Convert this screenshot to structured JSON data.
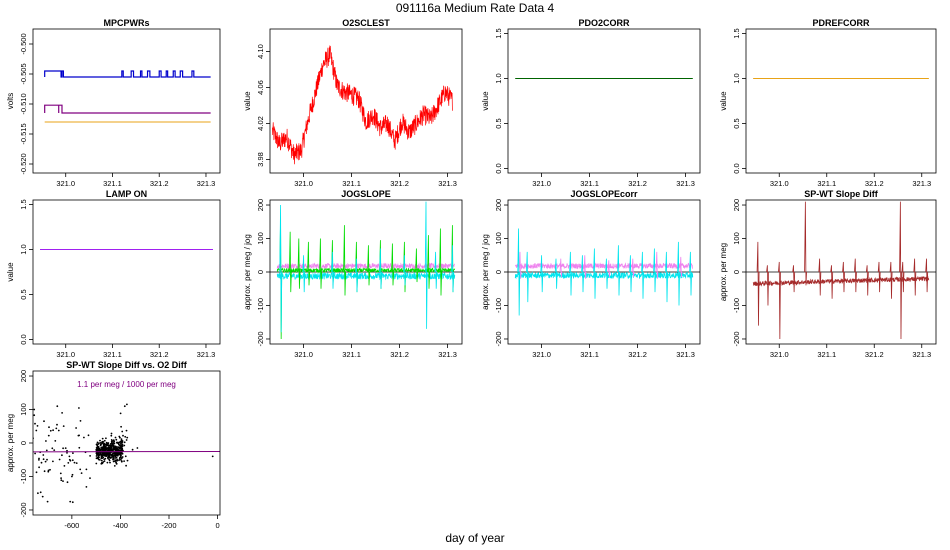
{
  "page": {
    "title": "091116a   Medium Rate Data 4",
    "x_label": "day of year"
  },
  "chart_data": [
    {
      "type": "line",
      "title": "MPCPWRs",
      "ylabel": "volts",
      "xlim": [
        320.93,
        321.33
      ],
      "ylim": [
        -0.5215,
        -0.4975
      ],
      "xticks": [
        321.0,
        321.1,
        321.2,
        321.3
      ],
      "xtick_labels": [
        "321.0",
        "321.1",
        "321.2",
        "321.3"
      ],
      "yticks": [
        -0.5,
        -0.505,
        -0.51,
        -0.515,
        -0.52
      ],
      "ytick_labels": [
        "-0.500",
        "-0.505",
        "-0.510",
        "-0.515",
        "-0.520"
      ],
      "series": [
        {
          "name": "blue",
          "color": "#0000cc",
          "kind": "step",
          "base": -0.5055,
          "high": -0.5045,
          "pulses": [
            [
              320.955,
              320.99
            ],
            [
              320.992,
              320.995
            ],
            [
              321.12,
              321.123
            ],
            [
              321.14,
              321.145
            ],
            [
              321.16,
              321.163
            ],
            [
              321.175,
              321.18
            ],
            [
              321.2,
              321.204
            ],
            [
              321.215,
              321.218
            ],
            [
              321.23,
              321.234
            ],
            [
              321.245,
              321.25
            ],
            [
              321.27,
              321.274
            ]
          ],
          "x0": 320.955,
          "x1": 321.31
        },
        {
          "name": "purple",
          "color": "#800080",
          "kind": "step",
          "base": -0.5115,
          "high": -0.5102,
          "pulses": [
            [
              320.955,
              320.985
            ],
            [
              320.985,
              320.992
            ]
          ],
          "x0": 320.955,
          "x1": 321.31
        },
        {
          "name": "orange",
          "color": "#e8a317",
          "kind": "flat",
          "value": -0.513,
          "x0": 320.955,
          "x1": 321.31
        }
      ]
    },
    {
      "type": "line",
      "title": "O2SCLEST",
      "ylabel": "value",
      "xlim": [
        320.93,
        321.33
      ],
      "ylim": [
        3.965,
        4.125
      ],
      "xticks": [
        321.0,
        321.1,
        321.2,
        321.3
      ],
      "xtick_labels": [
        "321.0",
        "321.1",
        "321.2",
        "321.3"
      ],
      "yticks": [
        3.98,
        4.02,
        4.06,
        4.1
      ],
      "ytick_labels": [
        "3.98",
        "4.02",
        "4.06",
        "4.10"
      ],
      "series": [
        {
          "name": "O2SCLEST",
          "color": "#ff0000",
          "kind": "noisy",
          "amp": 0.011,
          "x": [
            320.935,
            320.95,
            320.965,
            320.98,
            320.995,
            321.01,
            321.025,
            321.04,
            321.055,
            321.07,
            321.085,
            321.1,
            321.115,
            321.13,
            321.145,
            321.16,
            321.175,
            321.19,
            321.205,
            321.22,
            321.235,
            321.25,
            321.265,
            321.28,
            321.295,
            321.31
          ],
          "y": [
            4.012,
            3.997,
            4.005,
            3.985,
            3.99,
            4.025,
            4.055,
            4.085,
            4.097,
            4.062,
            4.055,
            4.052,
            4.047,
            4.022,
            4.03,
            4.015,
            4.02,
            4.0,
            4.022,
            4.01,
            4.02,
            4.03,
            4.025,
            4.04,
            4.055,
            4.045
          ]
        }
      ]
    },
    {
      "type": "line",
      "title": "PDO2CORR",
      "ylabel": "value",
      "xlim": [
        320.93,
        321.33
      ],
      "ylim": [
        -0.05,
        1.55
      ],
      "xticks": [
        321.0,
        321.1,
        321.2,
        321.3
      ],
      "xtick_labels": [
        "321.0",
        "321.1",
        "321.2",
        "321.3"
      ],
      "yticks": [
        0.0,
        0.5,
        1.0,
        1.5
      ],
      "ytick_labels": [
        "0.0",
        "0.5",
        "1.0",
        "1.5"
      ],
      "series": [
        {
          "name": "PDO2CORR",
          "color": "#006400",
          "kind": "flat",
          "value": 1.0,
          "x0": 320.945,
          "x1": 321.315
        }
      ]
    },
    {
      "type": "line",
      "title": "PDREFCORR",
      "ylabel": "value",
      "xlim": [
        320.93,
        321.33
      ],
      "ylim": [
        -0.05,
        1.55
      ],
      "xticks": [
        321.0,
        321.1,
        321.2,
        321.3
      ],
      "xtick_labels": [
        "321.0",
        "321.1",
        "321.2",
        "321.3"
      ],
      "yticks": [
        0.0,
        0.5,
        1.0,
        1.5
      ],
      "ytick_labels": [
        "0.0",
        "0.5",
        "1.0",
        "1.5"
      ],
      "series": [
        {
          "name": "PDREFCORR",
          "color": "#e8a317",
          "kind": "flat",
          "value": 1.0,
          "x0": 320.945,
          "x1": 321.315
        }
      ]
    },
    {
      "type": "line",
      "title": "LAMP ON",
      "ylabel": "value",
      "xlim": [
        320.93,
        321.33
      ],
      "ylim": [
        -0.05,
        1.55
      ],
      "xticks": [
        321.0,
        321.1,
        321.2,
        321.3
      ],
      "xtick_labels": [
        "321.0",
        "321.1",
        "321.2",
        "321.3"
      ],
      "yticks": [
        0.0,
        0.5,
        1.0,
        1.5
      ],
      "ytick_labels": [
        "0.0",
        "0.5",
        "1.0",
        "1.5"
      ],
      "series": [
        {
          "name": "LAMP ON",
          "color": "#a020f0",
          "kind": "flat",
          "value": 1.0,
          "x0": 320.945,
          "x1": 321.315
        }
      ]
    },
    {
      "type": "line",
      "title": "JOGSLOPE",
      "ylabel": "approx. per meg / jog",
      "xlim": [
        320.93,
        321.33
      ],
      "ylim": [
        -215,
        215
      ],
      "xticks": [
        321.0,
        321.1,
        321.2,
        321.3
      ],
      "xtick_labels": [
        "321.0",
        "321.1",
        "321.2",
        "321.3"
      ],
      "yticks": [
        -200,
        -100,
        0,
        100,
        200
      ],
      "ytick_labels": [
        "-200",
        "-100",
        "0",
        "100",
        "200"
      ],
      "zero_line": true,
      "series": [
        {
          "name": "violet",
          "color": "#ee82ee",
          "kind": "noisy",
          "amp": 8,
          "x": [
            320.945,
            321.315
          ],
          "y": [
            18,
            18
          ]
        },
        {
          "name": "cyan",
          "color": "#00e5ee",
          "kind": "noisy",
          "amp": 10,
          "x": [
            320.945,
            321.315
          ],
          "y": [
            -12,
            -12
          ]
        },
        {
          "name": "green",
          "color": "#00dd00",
          "kind": "noisy",
          "amp": 6,
          "x": [
            320.945,
            321.315
          ],
          "y": [
            5,
            5
          ]
        }
      ],
      "spikes": [
        {
          "color": "#00dd00",
          "x": [
            320.952,
            320.972,
            320.99,
            321.01,
            321.035,
            321.06,
            321.085,
            321.11,
            321.135,
            321.16,
            321.185,
            321.21,
            321.235,
            321.26,
            321.285,
            321.31
          ],
          "up": [
            160,
            120,
            100,
            90,
            100,
            95,
            140,
            90,
            80,
            95,
            85,
            90,
            70,
            110,
            130,
            140
          ],
          "down": [
            -200,
            -60,
            -50,
            -40,
            -50,
            -40,
            -70,
            -60,
            -40,
            -50,
            -40,
            -60,
            -30,
            -50,
            -70,
            -60
          ]
        },
        {
          "color": "#00e5ee",
          "x": [
            320.952,
            321.0,
            321.06,
            321.11,
            321.16,
            321.21,
            321.255,
            321.275,
            321.31
          ],
          "up": [
            200,
            50,
            60,
            40,
            70,
            50,
            210,
            60,
            80
          ],
          "down": [
            -180,
            -60,
            -50,
            -60,
            -50,
            -40,
            -170,
            -50,
            -60
          ]
        }
      ]
    },
    {
      "type": "line",
      "title": "JOGSLOPEcorr",
      "ylabel": "approx. per meg / jog",
      "xlim": [
        320.93,
        321.33
      ],
      "ylim": [
        -215,
        215
      ],
      "xticks": [
        321.0,
        321.1,
        321.2,
        321.3
      ],
      "xtick_labels": [
        "321.0",
        "321.1",
        "321.2",
        "321.3"
      ],
      "yticks": [
        -200,
        -100,
        0,
        100,
        200
      ],
      "ytick_labels": [
        "-200",
        "-100",
        "0",
        "100",
        "200"
      ],
      "zero_line": true,
      "series": [
        {
          "name": "violet",
          "color": "#ee82ee",
          "kind": "noisy",
          "amp": 8,
          "x": [
            320.945,
            321.315
          ],
          "y": [
            18,
            18
          ]
        },
        {
          "name": "cyan",
          "color": "#00e5ee",
          "kind": "noisy",
          "amp": 9,
          "x": [
            320.945,
            321.315
          ],
          "y": [
            -10,
            -10
          ]
        }
      ],
      "spikes": [
        {
          "color": "#ee82ee",
          "x": [
            320.955,
            321.04,
            321.09,
            321.14,
            321.19,
            321.24,
            321.29
          ],
          "up": [
            60,
            40,
            50,
            35,
            40,
            60,
            45
          ],
          "down": [
            -20,
            -15,
            -20,
            -15,
            -15,
            -20,
            -15
          ]
        },
        {
          "color": "#00e5ee",
          "x": [
            320.952,
            320.97,
            321.0,
            321.03,
            321.06,
            321.085,
            321.11,
            321.135,
            321.16,
            321.185,
            321.21,
            321.235,
            321.26,
            321.285,
            321.31
          ],
          "up": [
            130,
            60,
            50,
            40,
            60,
            50,
            70,
            40,
            80,
            50,
            60,
            70,
            60,
            90,
            60
          ],
          "down": [
            -130,
            -90,
            -60,
            -50,
            -70,
            -60,
            -80,
            -50,
            -70,
            -60,
            -80,
            -60,
            -90,
            -100,
            -70
          ]
        }
      ]
    },
    {
      "type": "line",
      "title": "SP-WT Slope Diff",
      "ylabel": "approx. per meg",
      "xlim": [
        320.93,
        321.33
      ],
      "ylim": [
        -215,
        215
      ],
      "xticks": [
        321.0,
        321.1,
        321.2,
        321.3
      ],
      "xtick_labels": [
        "321.0",
        "321.1",
        "321.2",
        "321.3"
      ],
      "yticks": [
        -200,
        -100,
        0,
        100,
        200
      ],
      "ytick_labels": [
        "-200",
        "-100",
        "0",
        "100",
        "200"
      ],
      "zero_line": true,
      "series": [
        {
          "name": "diff",
          "color": "#a52a2a",
          "kind": "noisy",
          "amp": 7,
          "x": [
            320.945,
            321.1,
            321.315
          ],
          "y": [
            -35,
            -28,
            -20
          ]
        }
      ],
      "spikes": [
        {
          "color": "#a52a2a",
          "x": [
            320.955,
            320.975,
            321.0,
            321.03,
            321.055,
            321.085,
            321.11,
            321.135,
            321.16,
            321.185,
            321.21,
            321.235,
            321.255,
            321.26,
            321.285,
            321.31
          ],
          "up": [
            90,
            20,
            30,
            20,
            210,
            40,
            20,
            30,
            40,
            20,
            30,
            30,
            210,
            30,
            40,
            40
          ],
          "down": [
            -160,
            -100,
            -200,
            -60,
            -40,
            -70,
            -80,
            -60,
            -60,
            -70,
            -60,
            -80,
            -200,
            -60,
            -70,
            -60
          ]
        }
      ]
    },
    {
      "type": "scatter",
      "title": "SP-WT Slope Diff vs. O2 Diff",
      "ylabel": "approx. per meg",
      "annotation": "1.1 per meg / 1000 per meg",
      "xlim": [
        -760,
        10
      ],
      "ylim": [
        -215,
        215
      ],
      "xticks": [
        -600,
        -400,
        -200,
        0
      ],
      "xtick_labels": [
        "-600",
        "-400",
        "-200",
        "0"
      ],
      "yticks": [
        -200,
        -100,
        0,
        100,
        200
      ],
      "ytick_labels": [
        "-200",
        "-100",
        "0",
        "100",
        "200"
      ],
      "fit": {
        "color": "#800080",
        "slope": 0.0011,
        "intercept": -25.5
      },
      "clusters": [
        {
          "xmin": -500,
          "xmax": -390,
          "ymean": -25,
          "ysd": 14,
          "n": 520
        },
        {
          "xmin": -760,
          "xmax": -500,
          "ymean": -30,
          "ysd": 60,
          "n": 70
        },
        {
          "xmin": -440,
          "xmax": -370,
          "ymean": -10,
          "ysd": 50,
          "n": 40
        }
      ],
      "points": [
        [
          -755,
          100
        ],
        [
          -740,
          -150
        ],
        [
          -720,
          -160
        ],
        [
          -700,
          -175
        ],
        [
          -690,
          -80
        ],
        [
          -660,
          110
        ],
        [
          -640,
          90
        ],
        [
          -610,
          -40
        ],
        [
          -600,
          -100
        ],
        [
          -580,
          -60
        ],
        [
          -560,
          -90
        ],
        [
          -350,
          -20
        ],
        [
          -330,
          -15
        ],
        [
          -20,
          -40
        ]
      ]
    }
  ]
}
